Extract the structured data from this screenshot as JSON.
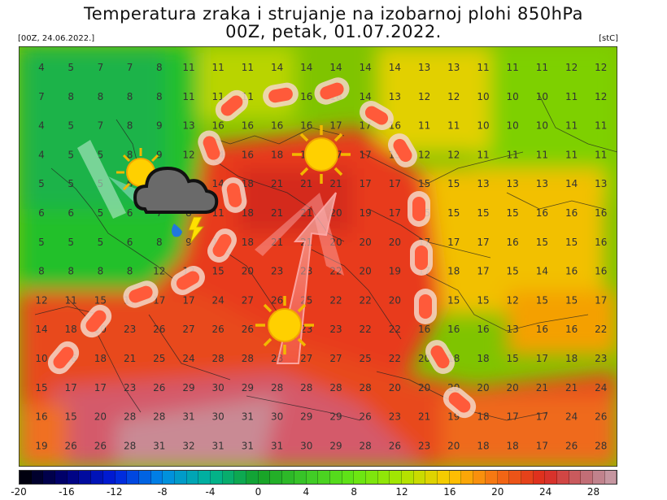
{
  "header": {
    "title_line1": "Temperatura zraka i strujanje na izobarnoj plohi 850hPa",
    "title_line2": "00Z, petak, 01.07.2022.",
    "run_label": "[00Z, 24.06.2022.]",
    "unit_label": "[stC]"
  },
  "colorbar": {
    "tick_labels": [
      "-20",
      "-16",
      "-12",
      "-8",
      "-4",
      "0",
      "4",
      "8",
      "12",
      "16",
      "20",
      "24",
      "28"
    ],
    "tick_values": [
      -20,
      -16,
      -12,
      -8,
      -4,
      0,
      4,
      8,
      12,
      16,
      20,
      24,
      28
    ],
    "min": -20,
    "max": 30,
    "step": 1
  },
  "icons": [
    "sun-icon",
    "sun-icon",
    "sun-icon",
    "rain-cloud-icon",
    "heat-arrow-icon",
    "cold-arrow-icon",
    "warm-front-marker"
  ],
  "map_numbers": [
    [
      "4",
      "5",
      "7",
      "7",
      "8",
      "11",
      "11",
      "11",
      "14",
      "14",
      "14",
      "14",
      "14",
      "13",
      "13",
      "11",
      "11",
      "11",
      "12",
      "12"
    ],
    [
      "7",
      "8",
      "8",
      "8",
      "8",
      "11",
      "11",
      "11",
      "11",
      "16",
      "16",
      "14",
      "13",
      "12",
      "12",
      "10",
      "10",
      "10",
      "11",
      "12"
    ],
    [
      "4",
      "5",
      "7",
      "8",
      "9",
      "13",
      "16",
      "16",
      "16",
      "16",
      "17",
      "17",
      "16",
      "11",
      "11",
      "10",
      "10",
      "10",
      "11",
      "11"
    ],
    [
      "4",
      "5",
      "5",
      "8",
      "9",
      "12",
      "14",
      "16",
      "18",
      "19",
      "17",
      "17",
      "15",
      "12",
      "12",
      "11",
      "11",
      "11",
      "11",
      "11"
    ],
    [
      "5",
      "5",
      "5",
      "6",
      "8",
      "10",
      "14",
      "18",
      "21",
      "21",
      "21",
      "17",
      "17",
      "15",
      "15",
      "13",
      "13",
      "13",
      "14",
      "13"
    ],
    [
      "6",
      "6",
      "5",
      "6",
      "7",
      "8",
      "11",
      "18",
      "21",
      "21",
      "20",
      "19",
      "17",
      "15",
      "15",
      "15",
      "15",
      "16",
      "16",
      "16"
    ],
    [
      "5",
      "5",
      "5",
      "6",
      "8",
      "9",
      "13",
      "18",
      "21",
      "21",
      "20",
      "20",
      "20",
      "17",
      "17",
      "17",
      "16",
      "15",
      "15",
      "16"
    ],
    [
      "8",
      "8",
      "8",
      "8",
      "12",
      "12",
      "15",
      "20",
      "23",
      "23",
      "22",
      "20",
      "19",
      "17",
      "18",
      "17",
      "15",
      "14",
      "16",
      "16"
    ],
    [
      "12",
      "11",
      "15",
      "17",
      "17",
      "17",
      "24",
      "27",
      "26",
      "25",
      "22",
      "22",
      "20",
      "18",
      "15",
      "15",
      "12",
      "15",
      "15",
      "17"
    ],
    [
      "14",
      "18",
      "20",
      "23",
      "26",
      "27",
      "26",
      "26",
      "27",
      "23",
      "23",
      "22",
      "22",
      "16",
      "16",
      "16",
      "13",
      "16",
      "16",
      "22"
    ],
    [
      "10",
      "16",
      "18",
      "21",
      "25",
      "24",
      "28",
      "28",
      "28",
      "27",
      "27",
      "25",
      "22",
      "20",
      "18",
      "18",
      "15",
      "17",
      "18",
      "23"
    ],
    [
      "15",
      "17",
      "17",
      "23",
      "26",
      "29",
      "30",
      "29",
      "28",
      "28",
      "28",
      "28",
      "20",
      "20",
      "20",
      "20",
      "20",
      "21",
      "21",
      "24"
    ],
    [
      "16",
      "15",
      "20",
      "28",
      "28",
      "31",
      "30",
      "31",
      "30",
      "29",
      "29",
      "26",
      "23",
      "21",
      "19",
      "18",
      "17",
      "17",
      "24",
      "26"
    ],
    [
      "19",
      "26",
      "26",
      "28",
      "31",
      "32",
      "31",
      "31",
      "31",
      "30",
      "29",
      "28",
      "26",
      "23",
      "20",
      "18",
      "18",
      "17",
      "26",
      "28"
    ]
  ]
}
